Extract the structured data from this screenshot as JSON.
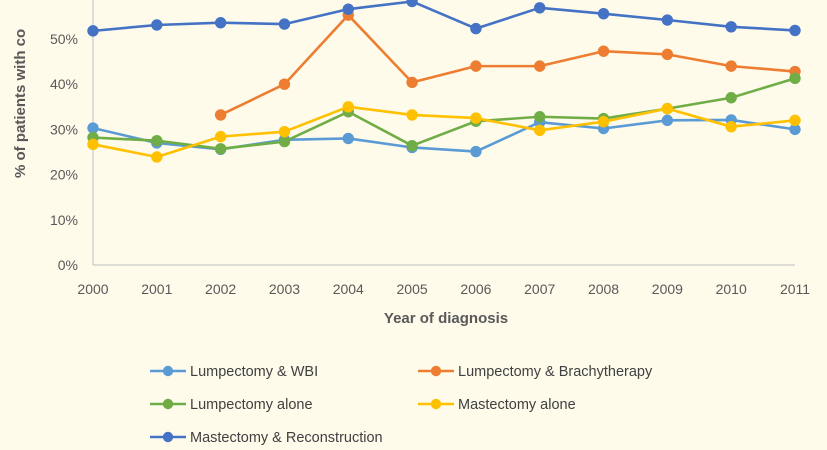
{
  "chart_data": {
    "type": "line",
    "title": "",
    "xlabel": "Year of diagnosis",
    "ylabel": "% of patients with co",
    "ylim": [
      0,
      60
    ],
    "yticks": [
      "0%",
      "10%",
      "20%",
      "30%",
      "40%",
      "50%"
    ],
    "x": [
      "2000",
      "2001",
      "2002",
      "2003",
      "2004",
      "2005",
      "2006",
      "2007",
      "2008",
      "2009",
      "2010",
      "2011"
    ],
    "grid": false,
    "legend_position": "bottom",
    "series": [
      {
        "name": "Lumpectomy & WBI",
        "color": "#5b9bd5",
        "values": [
          30.3,
          27.0,
          25.6,
          27.7,
          28.0,
          26.0,
          25.1,
          31.6,
          30.2,
          32.0,
          32.1,
          30.0
        ]
      },
      {
        "name": "Lumpectomy & Brachytherapy",
        "color": "#ed7d31",
        "values": [
          null,
          null,
          33.2,
          40.0,
          55.3,
          40.4,
          44.0,
          44.0,
          47.3,
          46.6,
          44.0,
          42.8
        ]
      },
      {
        "name": "Lumpectomy alone",
        "color": "#70ad47",
        "values": [
          28.2,
          27.5,
          25.7,
          27.3,
          33.9,
          26.4,
          31.8,
          32.8,
          32.4,
          34.6,
          37.0,
          41.3
        ]
      },
      {
        "name": "Mastectomy alone",
        "color": "#ffc000",
        "values": [
          26.7,
          23.9,
          28.4,
          29.5,
          35.0,
          33.2,
          32.5,
          29.8,
          31.7,
          34.6,
          30.6,
          32.0
        ]
      },
      {
        "name": "Mastectomy & Reconstruction",
        "color": "#4472c4",
        "values": [
          51.8,
          53.1,
          53.6,
          53.3,
          56.6,
          58.3,
          52.3,
          56.9,
          55.6,
          54.2,
          52.7,
          51.9
        ]
      }
    ]
  }
}
